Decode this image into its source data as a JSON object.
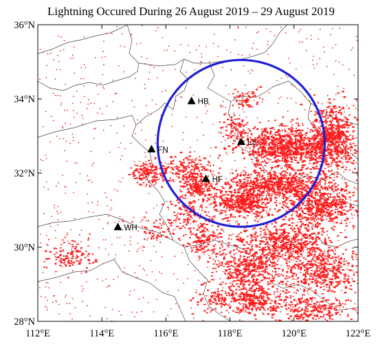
{
  "title": "Lightning Occured During 26 August 2019 – 29 August 2019",
  "map": {
    "lon_range": [
      112,
      122
    ],
    "lat_range": [
      28,
      36
    ],
    "x_ticks": [
      {
        "value": 112,
        "label": "112°E"
      },
      {
        "value": 114,
        "label": "114°E"
      },
      {
        "value": 116,
        "label": "116°E"
      },
      {
        "value": 118,
        "label": "118°E"
      },
      {
        "value": 120,
        "label": "120°E"
      },
      {
        "value": 122,
        "label": "122°E"
      }
    ],
    "y_ticks": [
      {
        "value": 36,
        "label": "36°N"
      },
      {
        "value": 34,
        "label": "34°N"
      },
      {
        "value": 32,
        "label": "32°N"
      },
      {
        "value": 30,
        "label": "30°N"
      },
      {
        "value": 28,
        "label": "28°N"
      }
    ],
    "stations": [
      {
        "code": "HB",
        "lon": 116.8,
        "lat": 33.95
      },
      {
        "code": "FN",
        "lon": 115.55,
        "lat": 32.65
      },
      {
        "code": "HF",
        "lon": 117.25,
        "lat": 31.85
      },
      {
        "code": "LS",
        "lon": 118.35,
        "lat": 32.85
      },
      {
        "code": "WH",
        "lon": 114.5,
        "lat": 30.55
      }
    ],
    "detection_circle": {
      "center_lon": 118.35,
      "center_lat": 32.8,
      "radius_lat_deg": 2.25,
      "color": "#1f1fd6"
    },
    "lightning_color": "#ff1a1a",
    "lightning_dot_color": "#e02020",
    "lightning_clusters": [
      {
        "lon": 119.8,
        "lat": 32.7,
        "slon": 1.2,
        "slat": 0.45,
        "n": 900
      },
      {
        "lon": 121.2,
        "lat": 32.9,
        "slon": 0.6,
        "slat": 0.75,
        "n": 650
      },
      {
        "lon": 119.5,
        "lat": 31.7,
        "slon": 1.3,
        "slat": 0.35,
        "n": 650
      },
      {
        "lon": 120.8,
        "lat": 31.1,
        "slon": 1.0,
        "slat": 0.5,
        "n": 600
      },
      {
        "lon": 118.4,
        "lat": 31.2,
        "slon": 0.8,
        "slat": 0.35,
        "n": 450
      },
      {
        "lon": 119.8,
        "lat": 30.1,
        "slon": 1.2,
        "slat": 0.45,
        "n": 600
      },
      {
        "lon": 118.6,
        "lat": 29.4,
        "slon": 0.9,
        "slat": 0.55,
        "n": 450
      },
      {
        "lon": 120.9,
        "lat": 29.3,
        "slon": 0.9,
        "slat": 0.5,
        "n": 400
      },
      {
        "lon": 118.8,
        "lat": 28.6,
        "slon": 0.8,
        "slat": 0.35,
        "n": 300
      },
      {
        "lon": 120.5,
        "lat": 28.3,
        "slon": 1.0,
        "slat": 0.3,
        "n": 250
      },
      {
        "lon": 116.7,
        "lat": 32.1,
        "slon": 0.7,
        "slat": 0.3,
        "n": 180
      },
      {
        "lon": 115.5,
        "lat": 32.0,
        "slon": 0.5,
        "slat": 0.25,
        "n": 160
      },
      {
        "lon": 117.0,
        "lat": 31.6,
        "slon": 0.45,
        "slat": 0.3,
        "n": 160
      },
      {
        "lon": 117.2,
        "lat": 30.2,
        "slon": 0.6,
        "slat": 0.4,
        "n": 160
      },
      {
        "lon": 113.0,
        "lat": 29.8,
        "slon": 0.7,
        "slat": 0.35,
        "n": 120
      },
      {
        "lon": 118.2,
        "lat": 33.2,
        "slon": 0.4,
        "slat": 0.3,
        "n": 90
      },
      {
        "lon": 118.5,
        "lat": 34.0,
        "slon": 0.35,
        "slat": 0.2,
        "n": 60
      },
      {
        "lon": 116.8,
        "lat": 30.9,
        "slon": 0.5,
        "slat": 0.3,
        "n": 90
      },
      {
        "lon": 115.8,
        "lat": 30.5,
        "slon": 0.6,
        "slat": 0.35,
        "n": 70
      },
      {
        "lon": 117.6,
        "lat": 28.6,
        "slon": 0.6,
        "slat": 0.3,
        "n": 80
      }
    ],
    "scatter_dots": 900
  }
}
